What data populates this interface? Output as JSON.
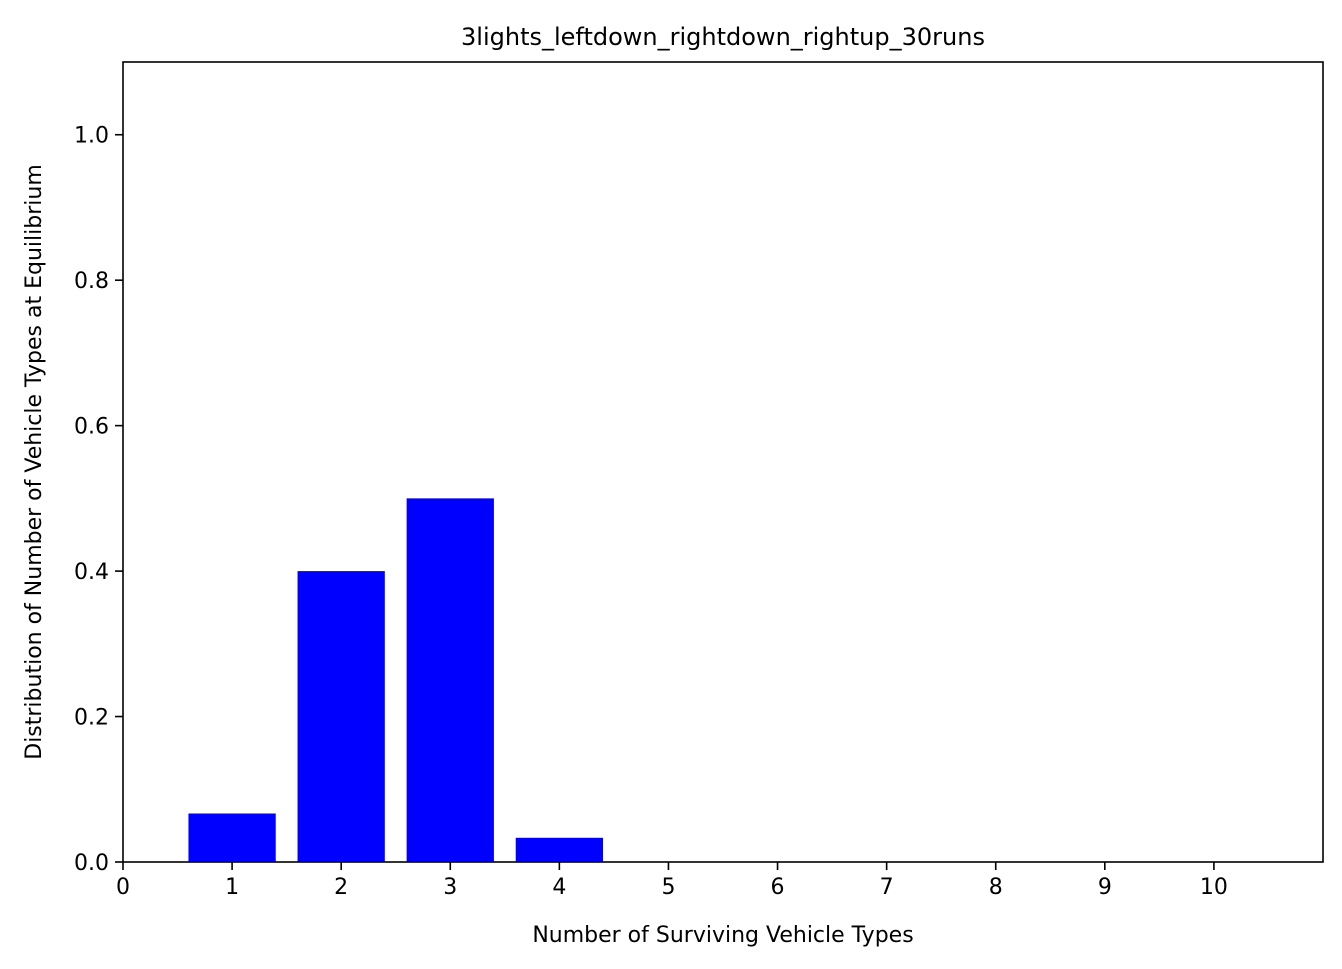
{
  "chart_data": {
    "type": "bar",
    "title": "3lights_leftdown_rightdown_rightup_30runs",
    "xlabel": "Number of Surviving Vehicle Types",
    "ylabel": "Distribution of Number of Vehicle Types at Equilibrium",
    "categories": [
      1,
      2,
      3,
      4,
      5,
      6,
      7,
      8,
      9,
      10
    ],
    "values": [
      0.0667,
      0.4,
      0.5,
      0.0333,
      0,
      0,
      0,
      0,
      0,
      0
    ],
    "bar_color": "#0000ff",
    "xlim": [
      0,
      11
    ],
    "ylim": [
      0,
      1.1
    ],
    "xticks": [
      0,
      1,
      2,
      3,
      4,
      5,
      6,
      7,
      8,
      9,
      10
    ],
    "xtick_labels": [
      "0",
      "1",
      "2",
      "3",
      "4",
      "5",
      "6",
      "7",
      "8",
      "9",
      "10"
    ],
    "yticks": [
      0.0,
      0.2,
      0.4,
      0.6,
      0.8,
      1.0
    ],
    "ytick_labels": [
      "0.0",
      "0.2",
      "0.4",
      "0.6",
      "0.8",
      "1.0"
    ],
    "grid": false,
    "legend": "none"
  }
}
